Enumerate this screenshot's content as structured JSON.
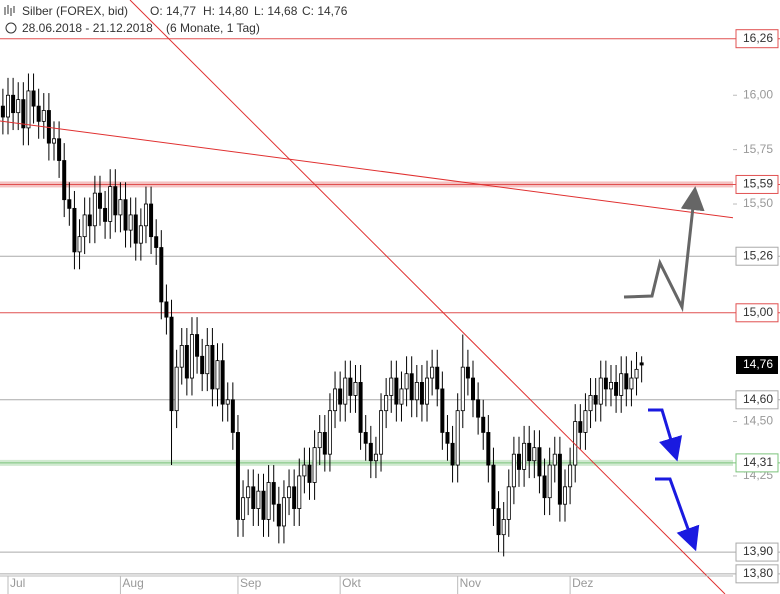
{
  "chart_data": {
    "type": "candlestick",
    "title": "Silber (FOREX, bid)",
    "ohlc_labels": [
      "O: 14,77",
      "H: 14,80",
      "L: 14,68",
      "C: 14,76"
    ],
    "subtitle": "28.06.2018 - 21.12.2018",
    "period": "(6 Monate, 1 Tag)",
    "categories": [
      null,
      null,
      "Jul",
      null,
      null,
      null,
      null,
      null,
      null,
      null,
      null,
      null,
      null,
      null,
      null,
      null,
      null,
      null,
      null,
      null,
      null,
      null,
      null,
      null,
      "Aug",
      null,
      null,
      null,
      null,
      null,
      null,
      null,
      null,
      null,
      null,
      null,
      null,
      null,
      null,
      null,
      null,
      null,
      null,
      null,
      null,
      null,
      null,
      "Sep",
      null,
      null,
      null,
      null,
      null,
      null,
      null,
      null,
      null,
      null,
      null,
      null,
      null,
      null,
      null,
      null,
      null,
      null,
      null,
      "Okt",
      null,
      null,
      null,
      null,
      null,
      null,
      null,
      null,
      null,
      null,
      null,
      null,
      null,
      null,
      null,
      null,
      null,
      null,
      null,
      null,
      null,
      null,
      "Nov",
      null,
      null,
      null,
      null,
      null,
      null,
      null,
      null,
      null,
      null,
      null,
      null,
      null,
      null,
      null,
      null,
      null,
      null,
      null,
      null,
      null,
      "Dez",
      null,
      null,
      null,
      null,
      null,
      null,
      null,
      null,
      null,
      null,
      null,
      null,
      null,
      null
    ],
    "open": [
      15.88,
      15.95,
      15.9,
      16.0,
      15.92,
      15.98,
      15.85,
      16.02,
      15.95,
      15.88,
      15.93,
      15.78,
      15.8,
      15.7,
      15.52,
      15.48,
      15.28,
      15.35,
      15.45,
      15.4,
      15.55,
      15.48,
      15.42,
      15.58,
      15.45,
      15.52,
      15.38,
      15.45,
      15.32,
      15.4,
      15.5,
      15.35,
      15.3,
      15.05,
      14.98,
      14.55,
      14.75,
      14.85,
      14.7,
      14.9,
      14.8,
      14.72,
      14.85,
      14.65,
      14.78,
      14.58,
      14.6,
      14.45,
      14.05,
      14.15,
      14.2,
      14.1,
      14.18,
      14.05,
      14.22,
      14.12,
      14.02,
      14.15,
      14.2,
      14.1,
      14.25,
      14.3,
      14.22,
      14.38,
      14.45,
      14.35,
      14.55,
      14.65,
      14.58,
      14.7,
      14.62,
      14.68,
      14.45,
      14.4,
      14.32,
      14.35,
      14.55,
      14.62,
      14.7,
      14.58,
      14.65,
      14.72,
      14.6,
      14.68,
      14.58,
      14.7,
      14.75,
      14.65,
      14.45,
      14.4,
      14.3,
      14.55,
      14.75,
      14.7,
      14.6,
      14.52,
      14.45,
      14.3,
      14.1,
      13.98,
      14.05,
      14.2,
      14.35,
      14.28,
      14.4,
      14.32,
      14.38,
      14.25,
      14.15,
      14.3,
      14.35,
      14.12,
      14.2,
      14.3,
      14.5,
      14.45,
      14.55,
      14.62,
      14.58,
      14.7,
      14.65,
      14.68,
      14.62,
      14.72,
      14.65,
      14.7,
      14.77
    ],
    "high": [
      16.03,
      16.03,
      16.08,
      16.08,
      16.06,
      16.06,
      16.1,
      16.1,
      16.03,
      16.01,
      16.01,
      15.88,
      15.88,
      15.78,
      15.6,
      15.56,
      15.43,
      15.53,
      15.53,
      15.63,
      15.63,
      15.56,
      15.66,
      15.66,
      15.6,
      15.6,
      15.53,
      15.53,
      15.48,
      15.58,
      15.58,
      15.43,
      15.38,
      15.13,
      15.06,
      14.83,
      14.93,
      14.93,
      14.98,
      14.98,
      14.88,
      14.93,
      14.93,
      14.86,
      14.86,
      14.68,
      14.68,
      14.53,
      14.23,
      14.28,
      14.28,
      14.26,
      14.26,
      14.3,
      14.3,
      14.2,
      14.23,
      14.28,
      14.28,
      14.33,
      14.38,
      14.38,
      14.46,
      14.53,
      14.53,
      14.63,
      14.73,
      14.73,
      14.78,
      14.78,
      14.76,
      14.76,
      14.53,
      14.48,
      14.43,
      14.63,
      14.7,
      14.78,
      14.78,
      14.73,
      14.8,
      14.8,
      14.76,
      14.76,
      14.78,
      14.83,
      14.83,
      14.73,
      14.53,
      14.48,
      14.63,
      14.9,
      14.83,
      14.78,
      14.68,
      14.6,
      14.53,
      14.38,
      14.18,
      14.13,
      14.28,
      14.43,
      14.43,
      14.48,
      14.48,
      14.46,
      14.46,
      14.33,
      14.38,
      14.43,
      14.43,
      14.28,
      14.38,
      14.58,
      14.58,
      14.63,
      14.7,
      14.7,
      14.78,
      14.78,
      14.76,
      14.76,
      14.8,
      14.8,
      14.78,
      14.82,
      14.8
    ],
    "low": [
      15.8,
      15.82,
      15.82,
      15.84,
      15.84,
      15.77,
      15.77,
      15.87,
      15.8,
      15.8,
      15.7,
      15.7,
      15.62,
      15.44,
      15.4,
      15.2,
      15.2,
      15.27,
      15.32,
      15.32,
      15.4,
      15.34,
      15.34,
      15.37,
      15.37,
      15.3,
      15.3,
      15.24,
      15.24,
      15.32,
      15.27,
      15.22,
      14.97,
      14.9,
      14.3,
      14.47,
      14.67,
      14.62,
      14.62,
      14.72,
      14.64,
      14.64,
      14.57,
      14.57,
      14.5,
      14.5,
      14.37,
      13.97,
      13.97,
      14.07,
      14.02,
      14.02,
      13.97,
      13.97,
      14.04,
      13.94,
      13.94,
      14.07,
      14.02,
      14.02,
      14.17,
      14.14,
      14.14,
      14.3,
      14.27,
      14.27,
      14.47,
      14.5,
      14.5,
      14.54,
      14.54,
      14.37,
      14.32,
      14.24,
      14.24,
      14.27,
      14.47,
      14.54,
      14.5,
      14.5,
      14.57,
      14.52,
      14.52,
      14.5,
      14.5,
      14.62,
      14.57,
      14.37,
      14.32,
      14.22,
      14.22,
      14.47,
      14.62,
      14.52,
      14.44,
      14.37,
      14.22,
      14.02,
      13.9,
      13.88,
      13.97,
      14.12,
      14.2,
      14.2,
      14.24,
      14.24,
      14.17,
      14.07,
      14.07,
      14.22,
      14.04,
      14.04,
      14.12,
      14.22,
      14.37,
      14.37,
      14.47,
      14.5,
      14.5,
      14.57,
      14.57,
      14.54,
      14.54,
      14.57,
      14.57,
      14.62,
      14.68
    ],
    "close": [
      15.95,
      15.9,
      16.0,
      15.92,
      15.98,
      15.85,
      16.02,
      15.95,
      15.88,
      15.93,
      15.78,
      15.8,
      15.7,
      15.52,
      15.48,
      15.28,
      15.35,
      15.45,
      15.4,
      15.55,
      15.48,
      15.42,
      15.58,
      15.45,
      15.52,
      15.38,
      15.45,
      15.32,
      15.4,
      15.5,
      15.35,
      15.3,
      15.05,
      14.98,
      14.55,
      14.75,
      14.85,
      14.7,
      14.9,
      14.8,
      14.72,
      14.85,
      14.65,
      14.78,
      14.58,
      14.6,
      14.45,
      14.05,
      14.15,
      14.2,
      14.1,
      14.18,
      14.05,
      14.22,
      14.12,
      14.02,
      14.15,
      14.2,
      14.1,
      14.25,
      14.3,
      14.22,
      14.38,
      14.45,
      14.35,
      14.55,
      14.65,
      14.58,
      14.7,
      14.62,
      14.68,
      14.45,
      14.4,
      14.32,
      14.35,
      14.55,
      14.62,
      14.7,
      14.58,
      14.65,
      14.72,
      14.6,
      14.68,
      14.58,
      14.7,
      14.75,
      14.65,
      14.45,
      14.4,
      14.3,
      14.55,
      14.75,
      14.7,
      14.6,
      14.52,
      14.45,
      14.3,
      14.1,
      13.98,
      14.05,
      14.2,
      14.35,
      14.28,
      14.4,
      14.32,
      14.38,
      14.25,
      14.15,
      14.3,
      14.35,
      14.12,
      14.2,
      14.3,
      14.5,
      14.45,
      14.55,
      14.62,
      14.58,
      14.7,
      14.65,
      14.68,
      14.62,
      14.72,
      14.65,
      14.7,
      14.74,
      14.76
    ],
    "up_color": "#ffffff",
    "down_color": "#000000",
    "wick_color": "#000000",
    "ylim": [
      13.79,
      16.3
    ],
    "yticks": [
      {
        "value": 14.25,
        "label": "14,25"
      },
      {
        "value": 14.5,
        "label": "14,50"
      },
      {
        "value": 15.5,
        "label": "15,50"
      },
      {
        "value": 15.75,
        "label": "15,75"
      },
      {
        "value": 16.0,
        "label": "16,00"
      }
    ],
    "levels": [
      {
        "value": 16.26,
        "label": "16,26",
        "color": "#e05050",
        "band": false
      },
      {
        "value": 15.59,
        "label": "15,59",
        "color": "#e05050",
        "band": true
      },
      {
        "value": 15.26,
        "label": "15,26",
        "color": "#aaaaaa",
        "band": false
      },
      {
        "value": 15.0,
        "label": "15,00",
        "color": "#e05050",
        "band": false
      },
      {
        "value": 14.6,
        "label": "14,60",
        "color": "#aaaaaa",
        "band": false
      },
      {
        "value": 14.31,
        "label": "14,31",
        "color": "#7cc47c",
        "band": true
      },
      {
        "value": 13.9,
        "label": "13,90",
        "color": "#aaaaaa",
        "band": false
      },
      {
        "value": 13.8,
        "label": "13,80",
        "color": "#aaaaaa",
        "band": false
      }
    ],
    "last_price": {
      "value": 14.76,
      "label": "14,76"
    }
  }
}
